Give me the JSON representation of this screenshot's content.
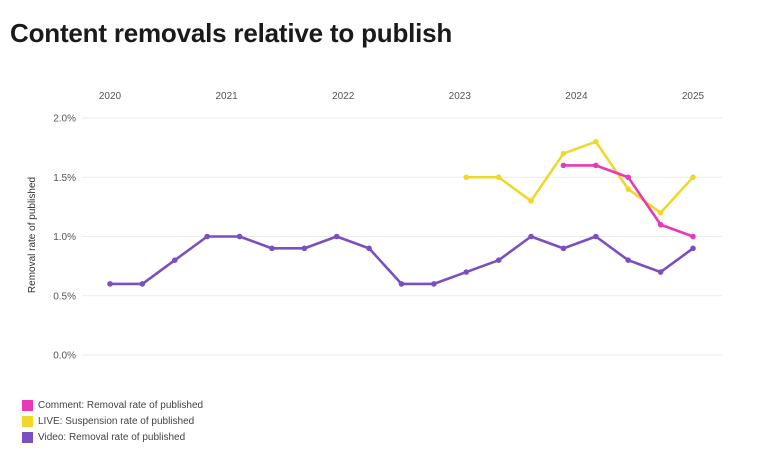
{
  "title": "Content removals relative to publish",
  "chart_data": {
    "type": "line",
    "title": "Content removals relative to publish",
    "xlabel": "",
    "ylabel": "Removal rate of published",
    "x_ticks": [
      "2020",
      "2021",
      "2022",
      "2023",
      "2024",
      "2025"
    ],
    "x_tick_pos": [
      0,
      3.6,
      7.2,
      10.8,
      14.4,
      18
    ],
    "x": [
      "2020 Q1",
      "2020 Q2",
      "2020 Q3",
      "2020 Q4",
      "2021 Q1",
      "2021 Q2",
      "2021 Q3",
      "2021 Q4",
      "2022 Q1",
      "2022 Q2",
      "2022 Q3",
      "2022 Q4",
      "2023 Q1",
      "2023 Q2",
      "2023 Q3",
      "2023 Q4",
      "2024 Q1",
      "2024 Q2",
      "2024 Q3",
      "2024 Q4"
    ],
    "y_ticks": [
      "0.0%",
      "0.5%",
      "1.0%",
      "1.5%",
      "2.0%"
    ],
    "ylim": [
      0,
      2.0
    ],
    "grid": true,
    "legend_position": "bottom-left",
    "series": [
      {
        "name": "Comment: Removal rate of published",
        "color": "#e83ab8",
        "values": [
          null,
          null,
          null,
          null,
          null,
          null,
          null,
          null,
          null,
          null,
          null,
          null,
          null,
          null,
          1.6,
          1.6,
          1.5,
          1.1,
          1.0,
          null
        ]
      },
      {
        "name": "LIVE: Suspension rate of published",
        "color": "#f0d82a",
        "values": [
          null,
          null,
          null,
          null,
          null,
          null,
          null,
          null,
          null,
          null,
          null,
          1.5,
          1.5,
          1.3,
          1.7,
          1.8,
          1.4,
          1.2,
          1.5,
          null
        ]
      },
      {
        "name": "Video: Removal rate of published",
        "color": "#7a4fc0",
        "values": [
          0.6,
          0.6,
          0.8,
          1.0,
          1.0,
          0.9,
          0.9,
          1.0,
          0.9,
          0.6,
          0.6,
          0.7,
          0.8,
          1.0,
          0.9,
          1.0,
          0.8,
          0.7,
          0.9,
          null
        ]
      }
    ]
  }
}
